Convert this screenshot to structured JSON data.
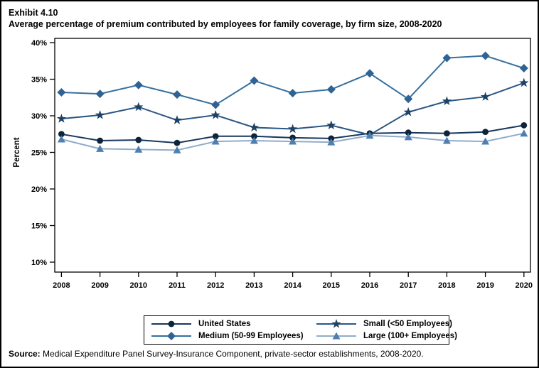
{
  "page": {
    "title_line1": "Exhibit 4.10",
    "title_line2": "Average percentage of premium contributed by employees for family coverage, by firm size, 2008-2020",
    "source_label": "Source:",
    "source_text": " Medical Expenditure Panel Survey-Insurance Component, private-sector establishments, 2008-2020."
  },
  "chart_data": {
    "type": "line",
    "title": "Average percentage of premium contributed by employees for family coverage, by firm size, 2008-2020",
    "xlabel": "",
    "ylabel": "Percent",
    "x": [
      2008,
      2009,
      2010,
      2011,
      2012,
      2013,
      2014,
      2015,
      2016,
      2017,
      2018,
      2019,
      2020
    ],
    "ylim": [
      10,
      40
    ],
    "yticks": [
      40,
      35,
      30,
      25,
      20,
      15,
      10
    ],
    "ytick_suffix": "%",
    "grid": false,
    "legend_position": "bottom-box",
    "series": [
      {
        "name": "United States",
        "marker": "circle",
        "line_color": "#17375E",
        "marker_color": "#0E2439",
        "values": [
          27.5,
          26.6,
          26.7,
          26.3,
          27.2,
          27.2,
          27.0,
          26.9,
          27.6,
          27.7,
          27.6,
          27.8,
          28.7
        ]
      },
      {
        "name": "Medium (50-99 Employees)",
        "marker": "diamond",
        "line_color": "#35709F",
        "marker_color": "#2E6394",
        "values": [
          33.2,
          33.0,
          34.2,
          32.9,
          31.5,
          34.8,
          33.1,
          33.6,
          35.8,
          32.3,
          37.9,
          38.2,
          36.5
        ]
      },
      {
        "name": "Small (<50 Employees)",
        "marker": "star",
        "line_color": "#2A5783",
        "marker_color": "#1E4164",
        "values": [
          29.6,
          30.1,
          31.2,
          29.4,
          30.1,
          28.4,
          28.2,
          28.7,
          27.4,
          30.5,
          32.0,
          32.6,
          34.5
        ]
      },
      {
        "name": "Large (100+ Employees)",
        "marker": "triangle",
        "line_color": "#8FACCB",
        "marker_color": "#4E7FB1",
        "values": [
          26.8,
          25.5,
          25.4,
          25.3,
          26.5,
          26.6,
          26.5,
          26.4,
          27.3,
          27.1,
          26.6,
          26.5,
          27.6
        ]
      }
    ]
  }
}
